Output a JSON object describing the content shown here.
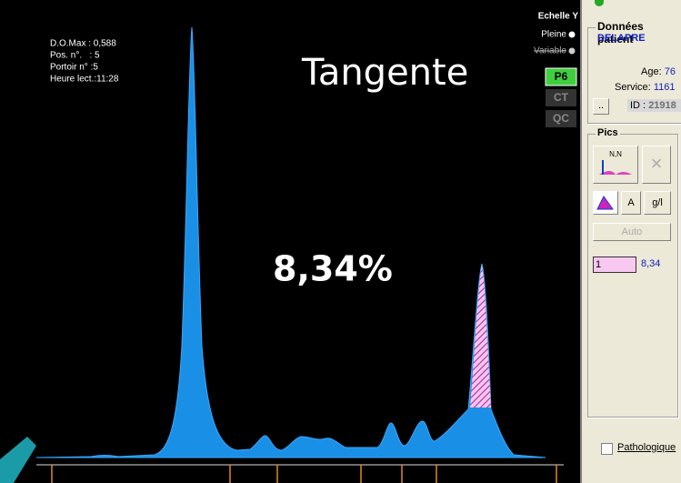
{
  "plot": {
    "scale_label": "Echelle Y",
    "options": [
      "Pleine",
      "Variable"
    ],
    "buttons": [
      "P6",
      "CT",
      "QC"
    ],
    "info": [
      "D.O.Max : 0,588",
      "Pos. n°.   : 5",
      "Portoir n° :5",
      "Heure lect.:11:28"
    ],
    "method": "Tangente",
    "percent": "8,34%"
  },
  "patient": {
    "title": "Données patient",
    "name": "DELAPRE",
    "age_label": "Age:",
    "age": "76",
    "service_label": "Service:",
    "service": "1161",
    "id_label": "ID :",
    "id": "21918",
    "browse": ".."
  },
  "peaks": {
    "title": "Pics",
    "icon": "N,N",
    "mode_a": "A",
    "mode_gl": "g/l",
    "auto": "Auto",
    "index": "1",
    "value": "8,34"
  },
  "pathologique": "Pathologique"
}
